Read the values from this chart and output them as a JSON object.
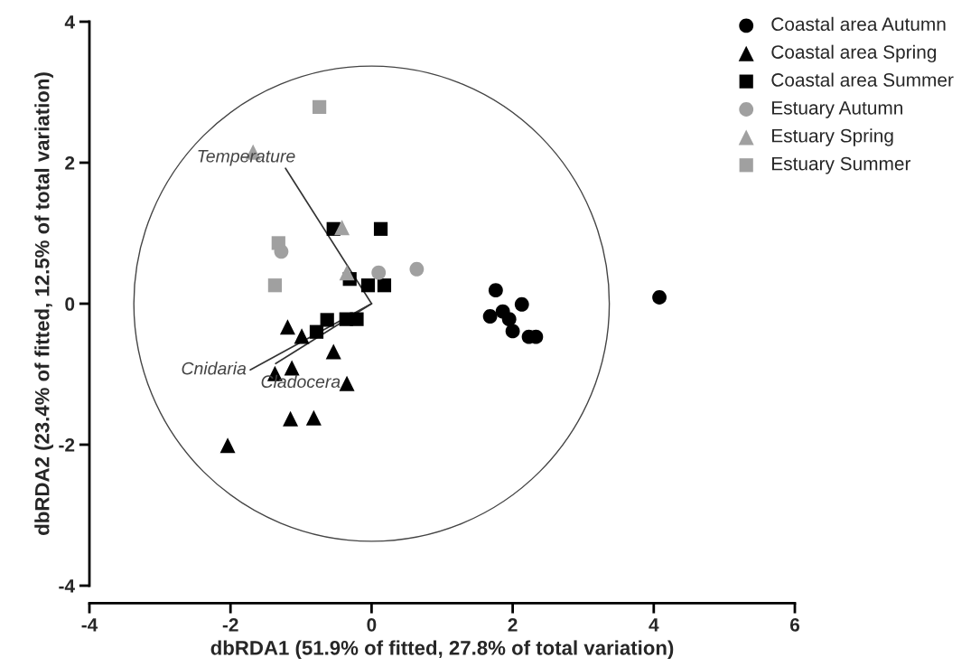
{
  "chart_data": {
    "type": "scatter",
    "xlabel": "dbRDA1 (51.9% of fitted, 27.8% of total variation)",
    "ylabel": "dbRDA2 (23.4% of fitted, 12.5% of total variation)",
    "xlim": [
      -4,
      6
    ],
    "ylim": [
      -4,
      4
    ],
    "xticks": [
      -4,
      -2,
      0,
      2,
      4,
      6
    ],
    "yticks": [
      -4,
      -2,
      0,
      2,
      4
    ],
    "grid": false,
    "legend": "top right",
    "series": [
      {
        "name": "Coastal area Autumn",
        "color": "#000000",
        "marker": "circle",
        "x": [
          1.76,
          2.13,
          1.68,
          1.86,
          1.95,
          2.0,
          2.23,
          2.33,
          4.08
        ],
        "values": [
          0.19,
          -0.01,
          -0.18,
          -0.11,
          -0.22,
          -0.39,
          -0.47,
          -0.47,
          0.09
        ]
      },
      {
        "name": "Coastal area Spring",
        "color": "#000000",
        "marker": "triangle",
        "x": [
          -1.19,
          -0.99,
          -0.54,
          -1.13,
          -1.37,
          -0.35,
          -1.15,
          -0.82,
          -2.04
        ],
        "values": [
          -0.33,
          -0.46,
          -0.68,
          -0.91,
          -0.99,
          -1.13,
          -1.63,
          -1.62,
          -2.01
        ]
      },
      {
        "name": "Coastal area Summer",
        "color": "#000000",
        "marker": "square",
        "x": [
          -0.54,
          0.13,
          -0.31,
          -0.05,
          0.18,
          -0.63,
          -0.36,
          -0.21,
          -0.78
        ],
        "values": [
          1.06,
          1.06,
          0.35,
          0.26,
          0.26,
          -0.23,
          -0.22,
          -0.22,
          -0.4
        ]
      },
      {
        "name": "Estuary Autumn",
        "color": "#a0a0a0",
        "marker": "circle",
        "x": [
          -1.28,
          0.1,
          0.64
        ],
        "values": [
          0.74,
          0.44,
          0.49
        ]
      },
      {
        "name": "Estuary Spring",
        "color": "#a0a0a0",
        "marker": "triangle",
        "x": [
          -1.68,
          -0.42,
          -0.35
        ],
        "values": [
          2.15,
          1.08,
          0.44
        ]
      },
      {
        "name": "Estuary Summer",
        "color": "#a0a0a0",
        "marker": "square",
        "x": [
          -0.74,
          -1.32,
          -1.37
        ],
        "values": [
          2.79,
          0.86,
          0.26
        ]
      },
      {
        "name": "Temperature",
        "type": "line",
        "color": "#333333",
        "x": [
          0,
          -1.22
        ],
        "values": [
          0,
          1.92
        ]
      },
      {
        "name": "Cnidaria",
        "type": "line",
        "color": "#333333",
        "x": [
          0,
          -1.72
        ],
        "values": [
          0,
          -0.94
        ]
      },
      {
        "name": "Cladocera",
        "type": "line",
        "color": "#333333",
        "x": [
          0,
          -1.36
        ],
        "values": [
          0,
          -0.85
        ]
      }
    ]
  }
}
